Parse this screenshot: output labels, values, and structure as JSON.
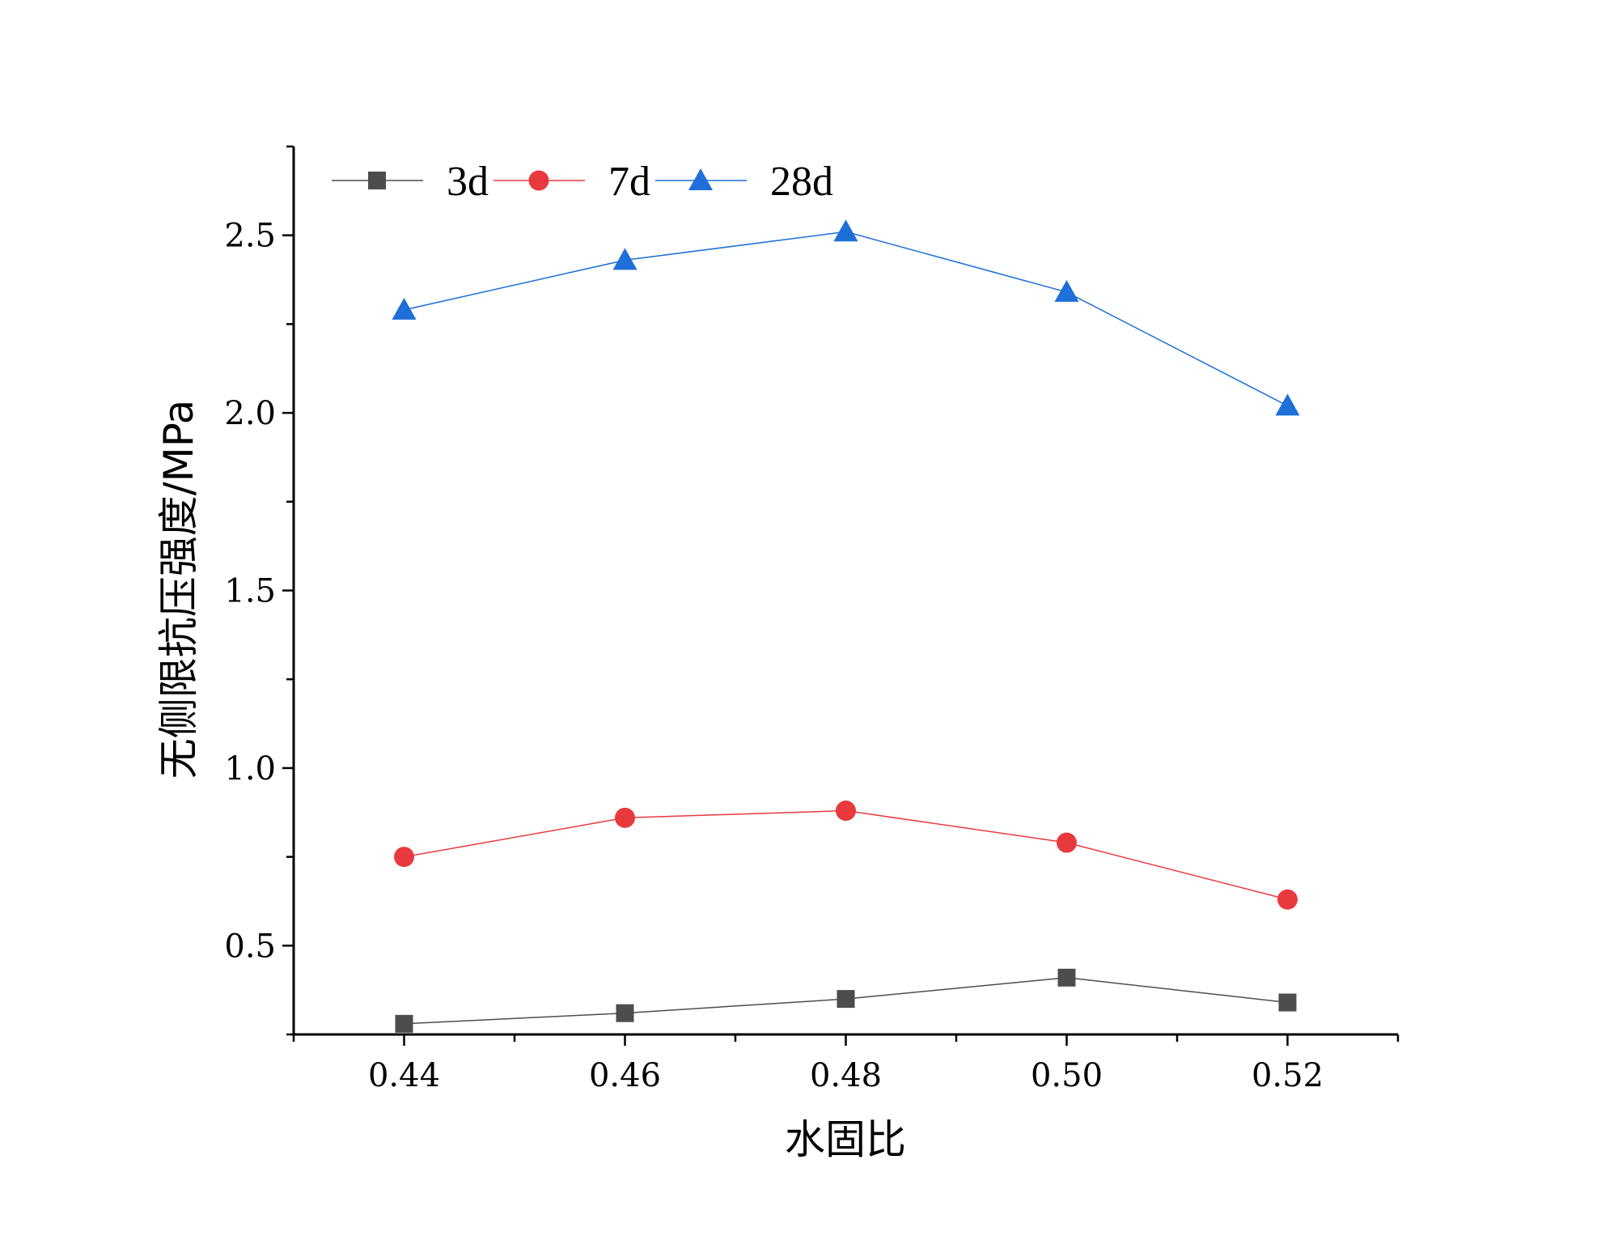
{
  "chart_data": {
    "type": "line",
    "title": "",
    "xlabel": "水固比",
    "ylabel": "无侧限抗压强度/MPa",
    "x": [
      0.44,
      0.46,
      0.48,
      0.5,
      0.52
    ],
    "x_tick_labels": [
      "0.44",
      "0.46",
      "0.48",
      "0.50",
      "0.52"
    ],
    "xlim": [
      0.43,
      0.53
    ],
    "ylim": [
      0.25,
      2.75
    ],
    "y_ticks": [
      0.5,
      1.0,
      1.5,
      2.0,
      2.5
    ],
    "y_tick_labels": [
      "0.5",
      "1.0",
      "1.5",
      "2.0",
      "2.5"
    ],
    "grid": false,
    "legend_position": "top-left",
    "series": [
      {
        "name": "3d",
        "marker": "square",
        "color": "#4d4d4d",
        "values": [
          0.28,
          0.31,
          0.35,
          0.41,
          0.34
        ]
      },
      {
        "name": "7d",
        "marker": "circle",
        "color": "#e8393e",
        "values": [
          0.75,
          0.86,
          0.88,
          0.79,
          0.63
        ]
      },
      {
        "name": "28d",
        "marker": "triangle",
        "color": "#1f6fd9",
        "values": [
          2.29,
          2.43,
          2.51,
          2.34,
          2.02
        ]
      }
    ]
  }
}
